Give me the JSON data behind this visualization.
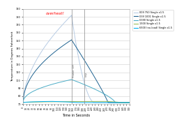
{
  "title": "",
  "xlabel": "Time in Seconds",
  "ylabel": "Temperature in Degrees Fahrenheit",
  "ylim": [
    70,
    190
  ],
  "yticks": [
    70,
    80,
    90,
    100,
    110,
    120,
    130,
    140,
    150,
    160,
    170,
    180,
    190
  ],
  "xticks": [
    0,
    10,
    20,
    30,
    40,
    50,
    60,
    70,
    80,
    90,
    100,
    110,
    120,
    130,
    140,
    150,
    160,
    170,
    180,
    190,
    200,
    210,
    220,
    230,
    240,
    250,
    260,
    270,
    280,
    290,
    300,
    310,
    320,
    330,
    340
  ],
  "xlim": [
    0,
    340
  ],
  "power_off_x": 155,
  "cap_x": 195,
  "overheat_label": "overheat!",
  "overheat_x": 103,
  "overheat_y": 183,
  "power_off_label": "Power Off",
  "cap_label": "cap",
  "legend_labels": [
    "009 750 Single x1.5",
    "039 1001 Single x1.5",
    "0390 Single x1.5",
    "1900 Single x1.5",
    "6900 (no-load) Single x1.5"
  ],
  "line_colors": [
    "#b8cce4",
    "#1f6391",
    "#4bacc6",
    "#9bbb59",
    "#00b0f0"
  ],
  "background_color": "#ffffff",
  "grid_color": "#d0d0d0",
  "curves": [
    {
      "base": 72,
      "peak": 182,
      "rise_end": 155,
      "fall_end": 228,
      "rise_shape": 1.8,
      "fall_shape": 0.55
    },
    {
      "base": 72,
      "peak": 151,
      "rise_end": 155,
      "fall_end": 272,
      "rise_shape": 2.0,
      "fall_shape": 1.1
    },
    {
      "base": 72,
      "peak": 101,
      "rise_end": 155,
      "fall_end": 295,
      "rise_shape": 2.2,
      "fall_shape": 1.4
    },
    {
      "base": 72,
      "peak": 73.5,
      "rise_end": 260,
      "fall_end": 310,
      "rise_shape": 2.5,
      "fall_shape": 2.0
    },
    {
      "base": 72,
      "peak": 73.5,
      "rise_end": 90,
      "fall_end": 170,
      "rise_shape": 2.0,
      "fall_shape": 1.5
    }
  ]
}
